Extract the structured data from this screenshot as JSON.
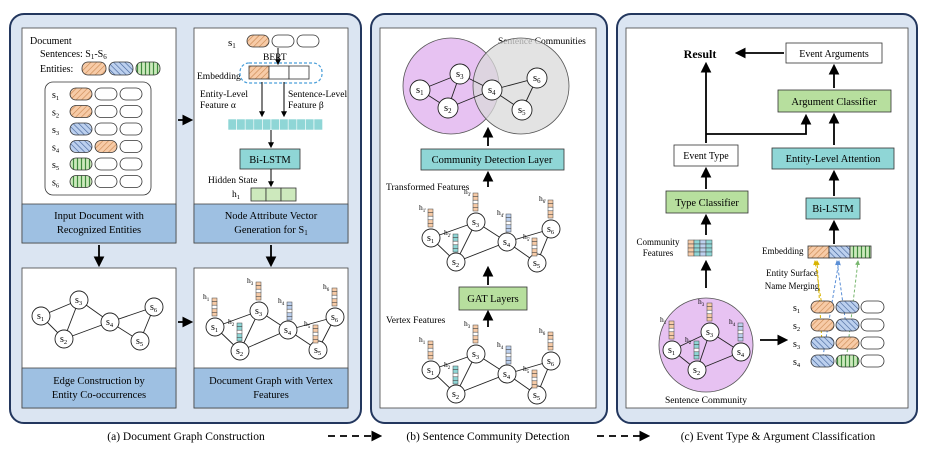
{
  "panel_a": {
    "doc_title": "Document",
    "sentences_label": "Sentences: S",
    "sentences_sub": "1",
    "sentences_mid": "-S",
    "sentences_sub2": "6",
    "entities_label": "Entities:",
    "sentence_sub": [
      "1",
      "2",
      "3",
      "4",
      "5",
      "6"
    ],
    "input_doc_line1": "Input Document with",
    "input_doc_line2": "Recognized Entities",
    "bert": "BERT",
    "embedding": "Embedding",
    "entity_feat_line1": "Entity-Level",
    "entity_feat_line2": "Feature α",
    "sent_feat_line1": "Sentence-Level",
    "sent_feat_line2": "Feature β",
    "bilstm": "Bi-LSTM",
    "hidden_state": "Hidden State",
    "node_attr_line1": "Node Attribute Vector",
    "node_attr_line2": "Generation for S",
    "node_attr_sub": "1",
    "edge_line1": "Edge Construction by",
    "edge_line2": "Entity Co-occurrences",
    "docgraph_line1": "Document Graph with Vertex",
    "docgraph_line2": "Features",
    "caption": "(a) Document Graph Construction"
  },
  "panel_b": {
    "sentence_communities": "Sentence Communities",
    "community_detection": "Community Detection Layer",
    "transformed_features": "Transformed Features",
    "gat_layers": "GAT Layers",
    "vertex_features": "Vertex Features",
    "caption": "(b) Sentence Community Detection"
  },
  "panel_c": {
    "result": "Result",
    "event_arguments": "Event Arguments",
    "argument_classifier": "Argument Classifier",
    "event_type": "Event Type",
    "entity_attention": "Entity-Level Attention",
    "type_classifier": "Type Classifier",
    "bilstm": "Bi-LSTM",
    "community_line1": "Community",
    "community_line2": "Features",
    "embedding": "Embedding",
    "surface_line1": "Entity Surface",
    "surface_line2": "Name Merging",
    "sentence_community": "Sentence Community",
    "caption": "(c) Event Type & Argument Classification"
  },
  "node_letter": "s",
  "feature_letter": "h",
  "colors": {
    "panel_bg": "#dbe5f2",
    "panel_border": "#23375e",
    "inner_box": "#ffffff",
    "box_label": "#9ec0e2",
    "teal": "#8fd6d6",
    "green": "#b7df9e",
    "purple": "#e7c2f2",
    "gray": "#d9d9d9",
    "orange": "#f7cba7",
    "blue": "#bcd0ee"
  }
}
